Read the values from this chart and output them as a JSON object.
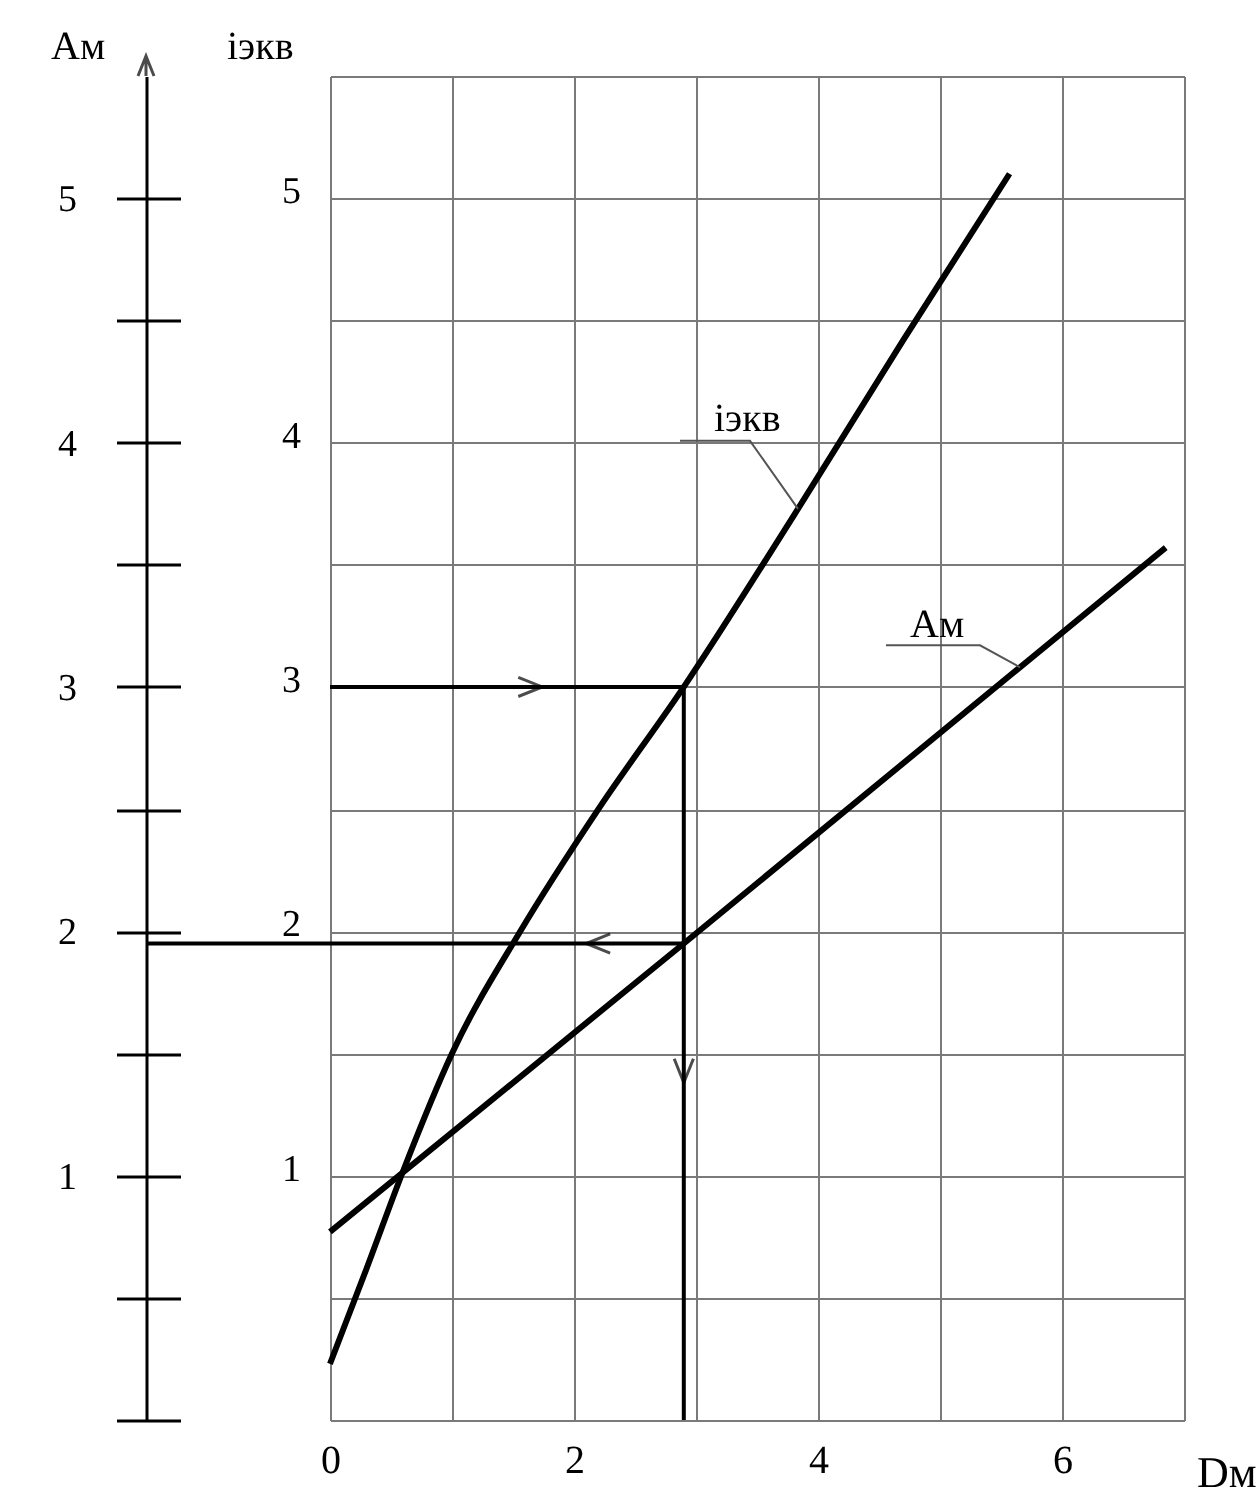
{
  "chart_data": {
    "type": "line",
    "xlabel": "Dм",
    "ylabel": "iэкв",
    "y2label": "Aм",
    "xlim": [
      0,
      7
    ],
    "xticks": [
      0,
      {
        "value": 1,
        "label": null
      },
      2,
      {
        "value": 3,
        "label": null
      },
      4,
      {
        "value": 5,
        "label": null
      },
      6,
      {
        "value": 7,
        "label": null
      }
    ],
    "ylim": [
      0,
      5.5
    ],
    "yticks": [
      {
        "value": 0,
        "label": null
      },
      {
        "value": 0.5,
        "label": null
      },
      1,
      {
        "value": 1.5,
        "label": null
      },
      2,
      {
        "value": 2.5,
        "label": null
      },
      3,
      {
        "value": 3.5,
        "label": null
      },
      4,
      {
        "value": 4.5,
        "label": null
      },
      5,
      {
        "value": 5.5,
        "label": null
      }
    ],
    "y2lim": [
      0,
      5.5
    ],
    "y2ticks": [
      {
        "value": 0,
        "label": null
      },
      {
        "value": 0.5,
        "label": null
      },
      1,
      {
        "value": 1.5,
        "label": null
      },
      2,
      {
        "value": 2.5,
        "label": null
      },
      3,
      {
        "value": 3.5,
        "label": null
      },
      4,
      {
        "value": 4.5,
        "label": null
      },
      5
    ],
    "grid": true,
    "series": [
      {
        "name": "iэкв",
        "color": "#000000",
        "x": [
          0,
          0.3,
          0.6,
          1.0,
          1.56,
          2.2,
          2.9,
          3.8,
          4.7,
          5.57
        ],
        "values": [
          0.23,
          0.62,
          1.02,
          1.5,
          2.0,
          2.5,
          3.0,
          3.7,
          4.42,
          5.1
        ]
      },
      {
        "name": "Aм",
        "color": "#000000",
        "axis": "y2",
        "x": [
          0,
          2.9,
          6.85
        ],
        "values": [
          0.77,
          1.95,
          3.57
        ]
      },
      {
        "color": "#000000",
        "x": [
          0,
          2.9,
          2.9
        ],
        "values": [
          3,
          3,
          0
        ]
      },
      {
        "color": "#000000",
        "axis": "y2",
        "x": [
          2.9,
          0
        ],
        "values": [
          1.95,
          1.95
        ]
      }
    ]
  }
}
